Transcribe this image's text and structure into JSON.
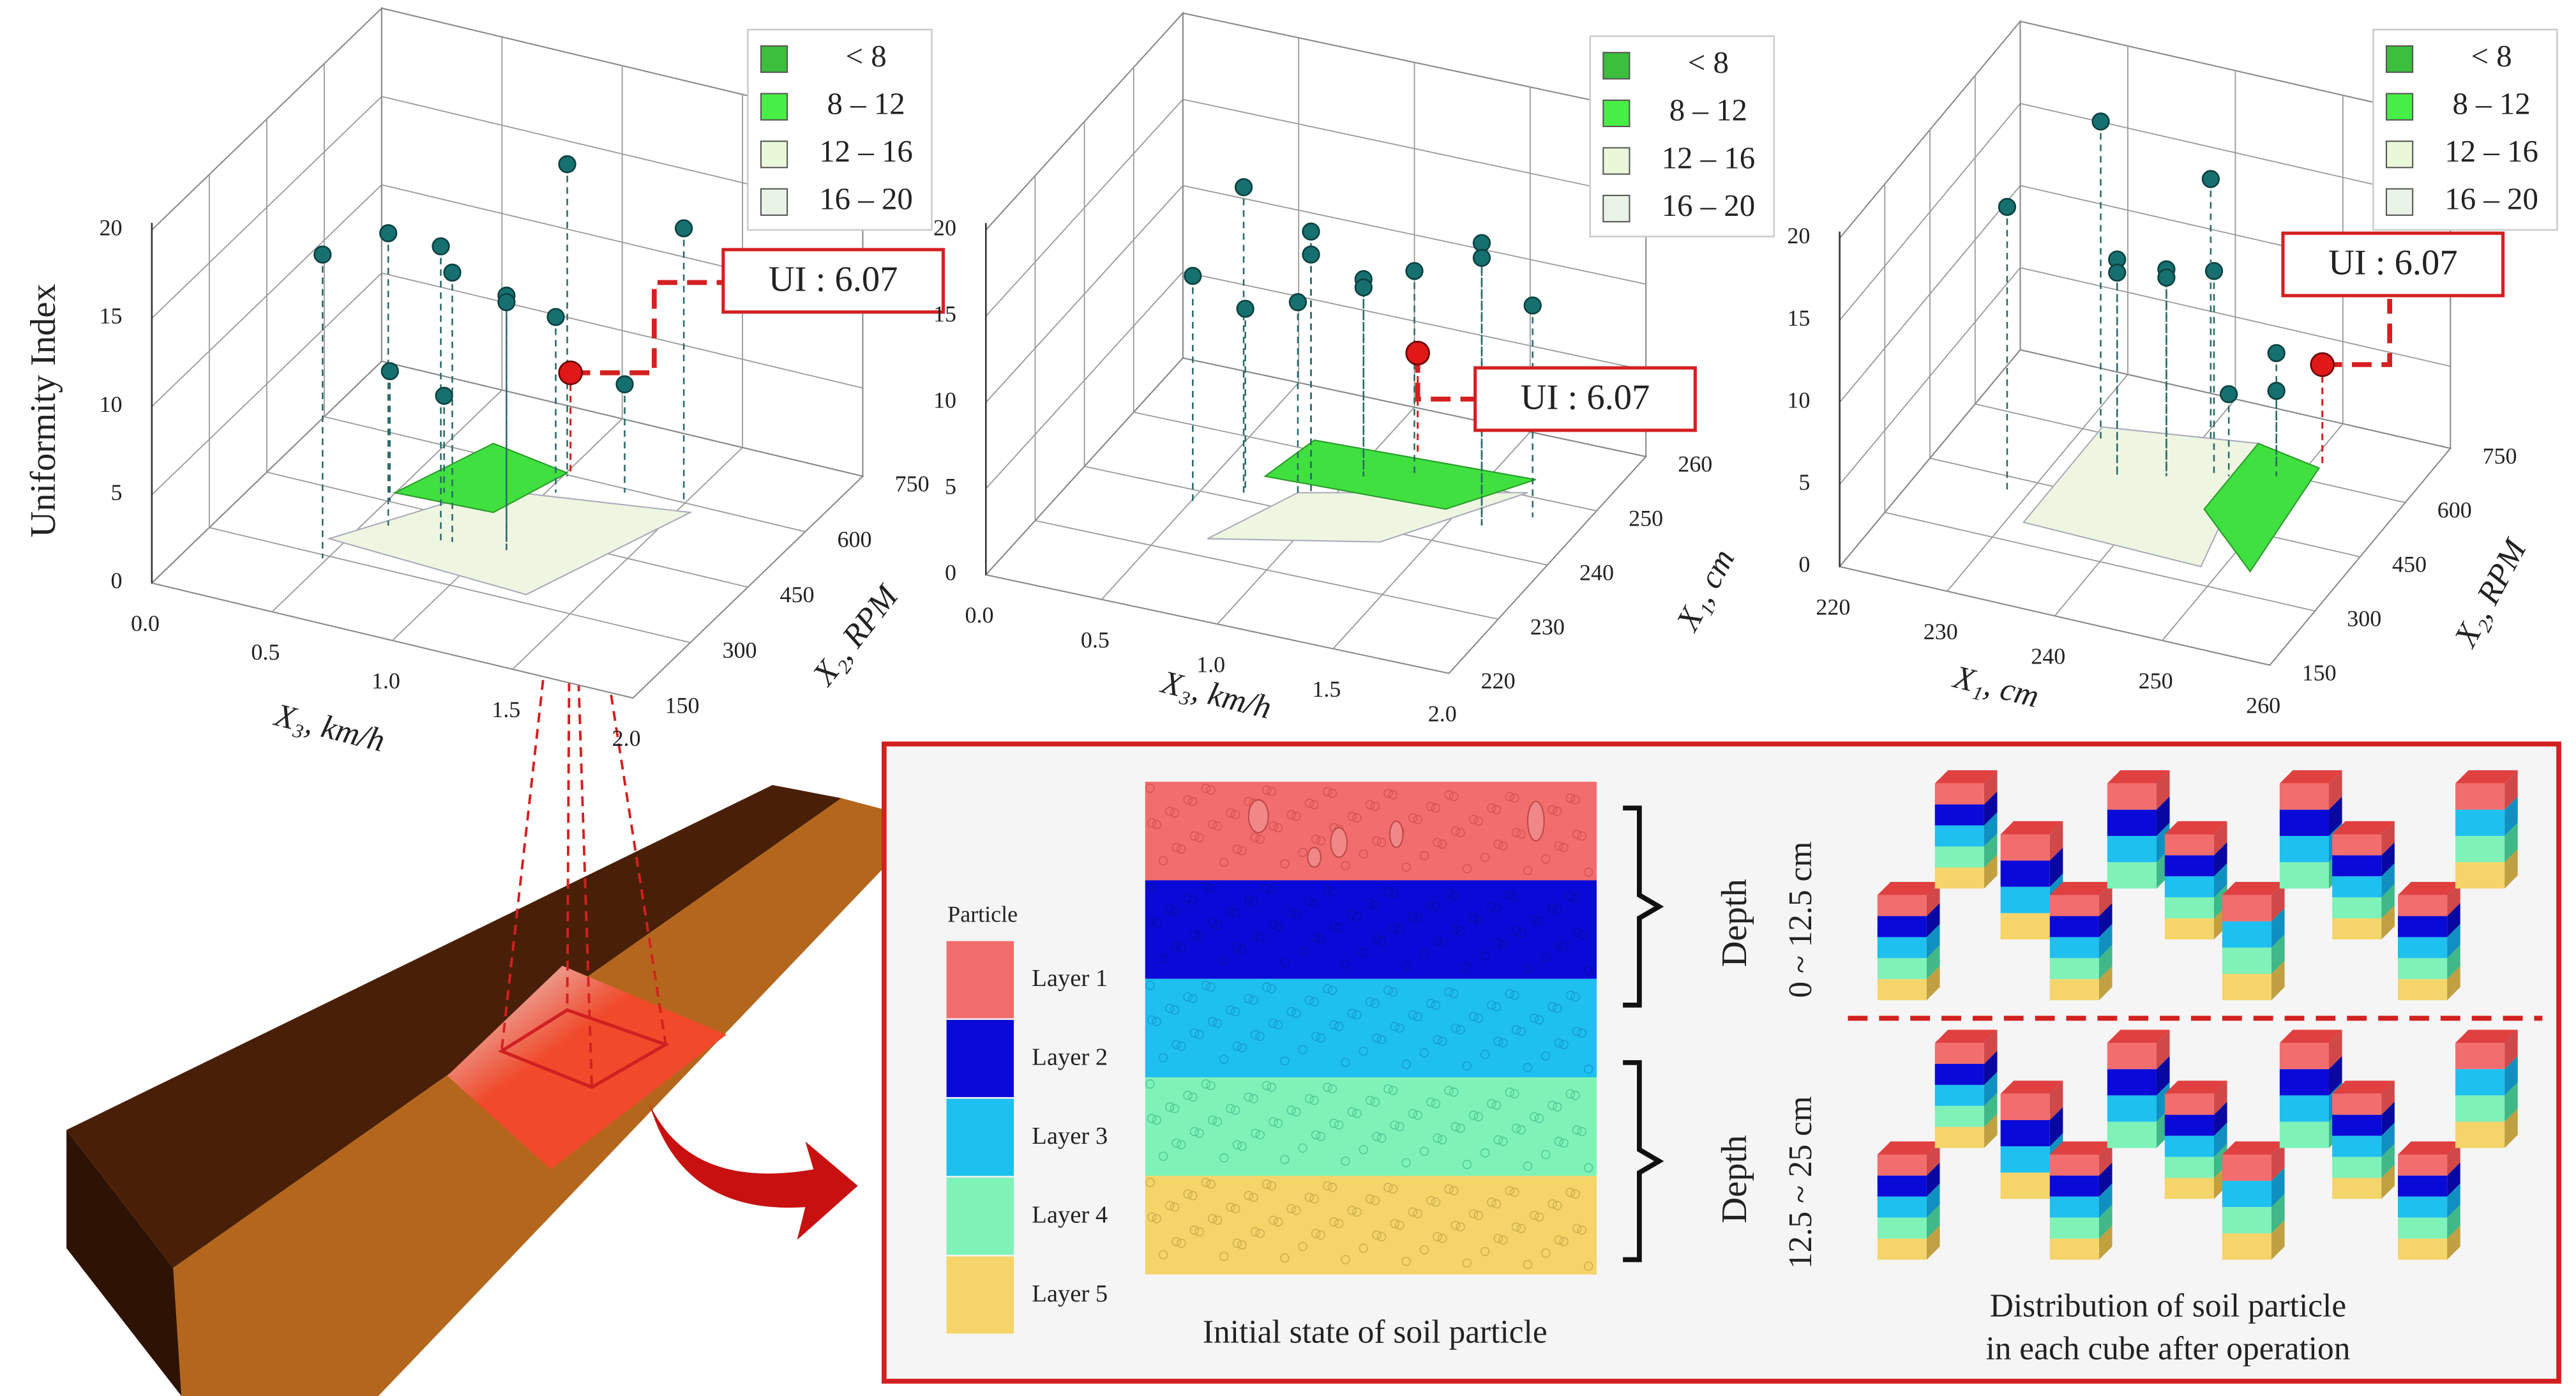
{
  "plots": [
    {
      "z_label": "Uniformity Index",
      "z_ticks": [
        "0",
        "5",
        "10",
        "15",
        "20"
      ],
      "x_label": "X₃, km/h",
      "x_ticks": [
        "0.0",
        "0.5",
        "1.0",
        "1.5",
        "2.0"
      ],
      "y_label": "X₂, RPM",
      "y_ticks": [
        "150",
        "300",
        "450",
        "600",
        "750"
      ],
      "legend": [
        "< 8",
        "8 – 12",
        "12 – 16",
        "16 – 20"
      ],
      "annotation": "UI : 6.07"
    },
    {
      "z_ticks": [
        "0",
        "5",
        "10",
        "15",
        "20"
      ],
      "x_label": "X₃, km/h",
      "x_ticks": [
        "0.0",
        "0.5",
        "1.0",
        "1.5",
        "2.0"
      ],
      "y_label": "X₁, cm",
      "y_ticks": [
        "220",
        "230",
        "240",
        "250",
        "260"
      ],
      "legend": [
        "< 8",
        "8 – 12",
        "12 – 16",
        "16 – 20"
      ],
      "annotation": "UI : 6.07"
    },
    {
      "z_ticks": [
        "0",
        "5",
        "10",
        "15",
        "20"
      ],
      "x_label": "X₁, cm",
      "x_ticks": [
        "220",
        "230",
        "240",
        "250",
        "260"
      ],
      "y_label": "X₂, RPM",
      "y_ticks": [
        "150",
        "300",
        "450",
        "600",
        "750"
      ],
      "legend": [
        "< 8",
        "8 – 12",
        "12 – 16",
        "16 – 20"
      ],
      "annotation": "UI : 6.07"
    }
  ],
  "panel": {
    "legend_title": "Particle",
    "layers": [
      "Layer 1",
      "Layer 2",
      "Layer 3",
      "Layer 4",
      "Layer 5"
    ],
    "caption_left": "Initial state of soil particle",
    "depth_upper": [
      "Depth",
      "0 ~ 12.5 cm"
    ],
    "depth_lower": [
      "Depth",
      "12.5 ~ 25 cm"
    ],
    "caption_right": [
      "Distribution of soil particle",
      "in each cube after operation"
    ]
  }
}
